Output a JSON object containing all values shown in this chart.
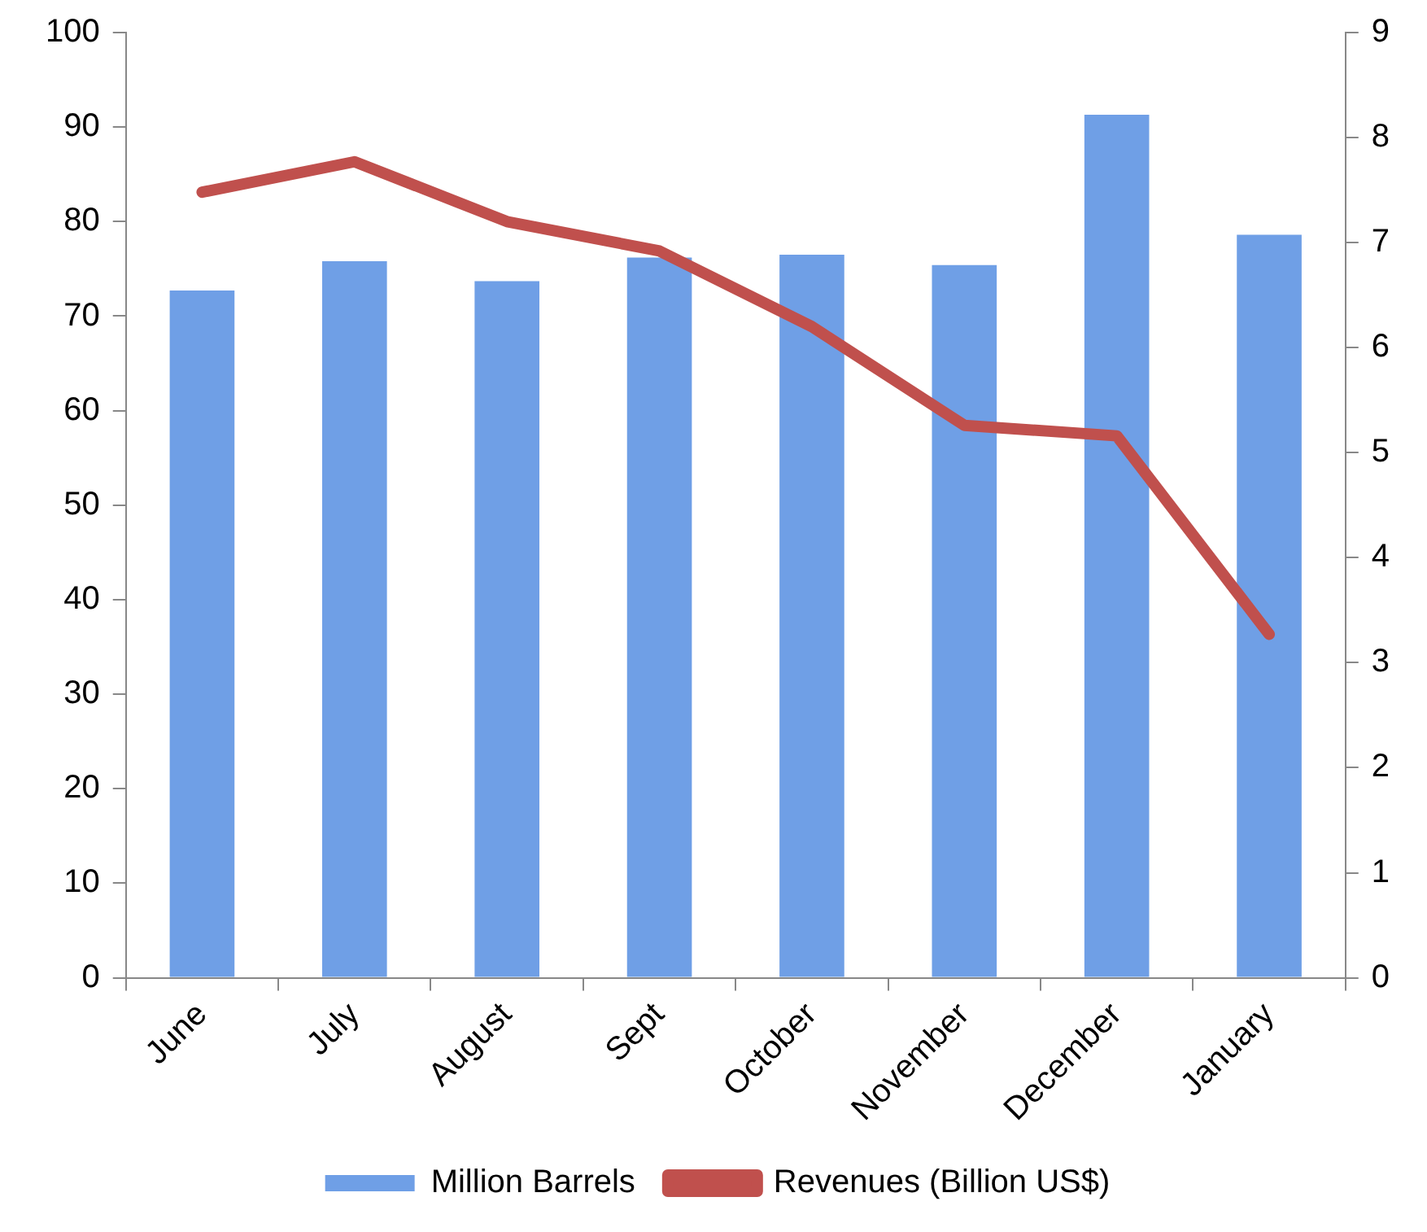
{
  "chart_data": {
    "type": "bar",
    "categories": [
      "June",
      "July",
      "August",
      "Sept",
      "October",
      "November",
      "December",
      "January"
    ],
    "series": [
      {
        "name": "Million Barrels",
        "color": "#6f9fe6",
        "values": [
          72.7,
          75.8,
          73.7,
          76.2,
          76.5,
          75.4,
          91.3,
          78.6
        ]
      },
      {
        "name": "Revenues (Billion US$)",
        "type": "line",
        "axis": "y2",
        "color": "#c0504d",
        "values": [
          7.48,
          7.77,
          7.2,
          6.92,
          6.2,
          5.26,
          5.16,
          3.27
        ]
      }
    ],
    "ylim": [
      0,
      100
    ],
    "yticks": [
      0,
      10,
      20,
      30,
      40,
      50,
      60,
      70,
      80,
      90,
      100
    ],
    "y2lim": [
      0,
      9
    ],
    "y2ticks": [
      0,
      1,
      2,
      3,
      4,
      5,
      6,
      7,
      8,
      9
    ],
    "grid": false,
    "legend": "bottom",
    "marker": "none"
  }
}
